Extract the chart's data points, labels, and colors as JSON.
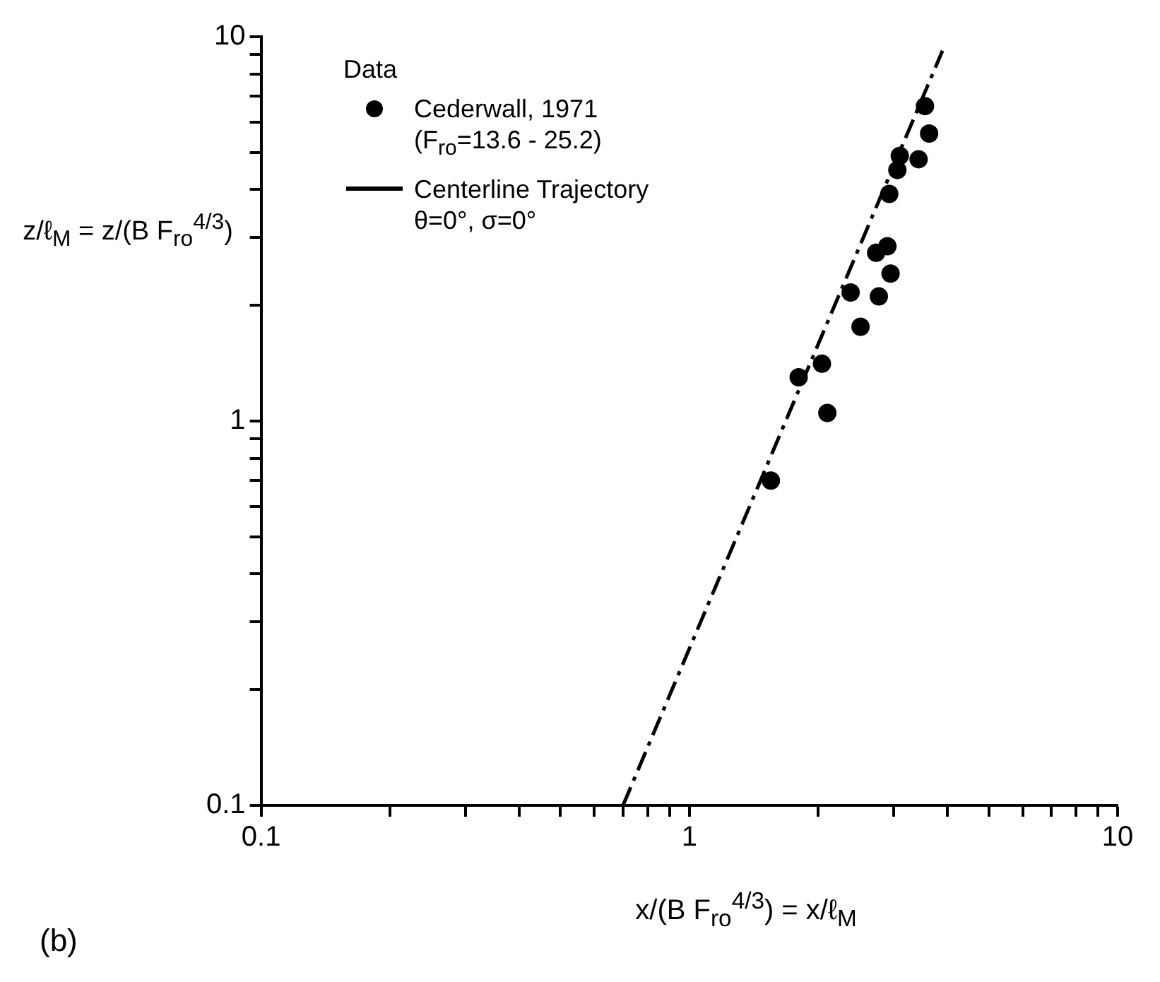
{
  "chart_data": {
    "type": "scatter",
    "xlabel": "x/(B F$_{ro}$$^{4/3}$) = x/ℓ$_{M}$",
    "ylabel": "z/ℓ$_{M}$ = z/(B F$_{ro}$$^{4/3}$)",
    "legend_title": "Data",
    "annotations": [
      "(b)"
    ],
    "log": "xy",
    "xlim": [
      0.1,
      10
    ],
    "ylim": [
      0.1,
      10
    ],
    "xticks": [
      0.1,
      {
        "value": 0.2,
        "label": null
      },
      {
        "value": 0.3,
        "label": null
      },
      {
        "value": 0.4,
        "label": null
      },
      {
        "value": 0.5,
        "label": null
      },
      {
        "value": 0.6,
        "label": null
      },
      {
        "value": 0.7,
        "label": null
      },
      {
        "value": 0.8,
        "label": null
      },
      {
        "value": 0.9,
        "label": null
      },
      1,
      {
        "value": 2,
        "label": null
      },
      {
        "value": 3,
        "label": null
      },
      {
        "value": 4,
        "label": null
      },
      {
        "value": 5,
        "label": null
      },
      {
        "value": 6,
        "label": null
      },
      {
        "value": 7,
        "label": null
      },
      {
        "value": 8,
        "label": null
      },
      {
        "value": 9,
        "label": null
      },
      10
    ],
    "yticks": [
      0.1,
      {
        "value": 0.2,
        "label": null
      },
      {
        "value": 0.3,
        "label": null
      },
      {
        "value": 0.4,
        "label": null
      },
      {
        "value": 0.5,
        "label": null
      },
      {
        "value": 0.6,
        "label": null
      },
      {
        "value": 0.7,
        "label": null
      },
      {
        "value": 0.8,
        "label": null
      },
      {
        "value": 0.9,
        "label": null
      },
      1,
      {
        "value": 2,
        "label": null
      },
      {
        "value": 3,
        "label": null
      },
      {
        "value": 4,
        "label": null
      },
      {
        "value": 5,
        "label": null
      },
      {
        "value": 6,
        "label": null
      },
      {
        "value": 7,
        "label": null
      },
      {
        "value": 8,
        "label": null
      },
      {
        "value": 9,
        "label": null
      },
      10
    ],
    "grid": false,
    "legend": "top left",
    "series": [
      {
        "name": "Cederwall, 1971\n(F$_{ro}$=13.6 - 25.2)",
        "marker": "circle",
        "color": "#000000",
        "x": [
          3.55,
          3.63,
          3.1,
          3.43,
          3.06,
          2.93,
          2.9,
          2.73,
          2.95,
          2.77,
          2.38,
          2.51,
          2.04,
          1.8,
          2.1,
          1.55
        ],
        "values": [
          6.6,
          5.6,
          4.9,
          4.8,
          4.5,
          3.9,
          2.85,
          2.74,
          2.42,
          2.11,
          2.16,
          1.76,
          1.41,
          1.3,
          1.05,
          0.7
        ]
      },
      {
        "name": "Centerline Trajectory\nθ=0°,  σ=0°",
        "type": "line",
        "marker": "none",
        "line_style": "dashed",
        "color": "#000000",
        "x": [
          0.7,
          3.9
        ],
        "values": [
          0.1,
          9.2
        ]
      }
    ]
  }
}
